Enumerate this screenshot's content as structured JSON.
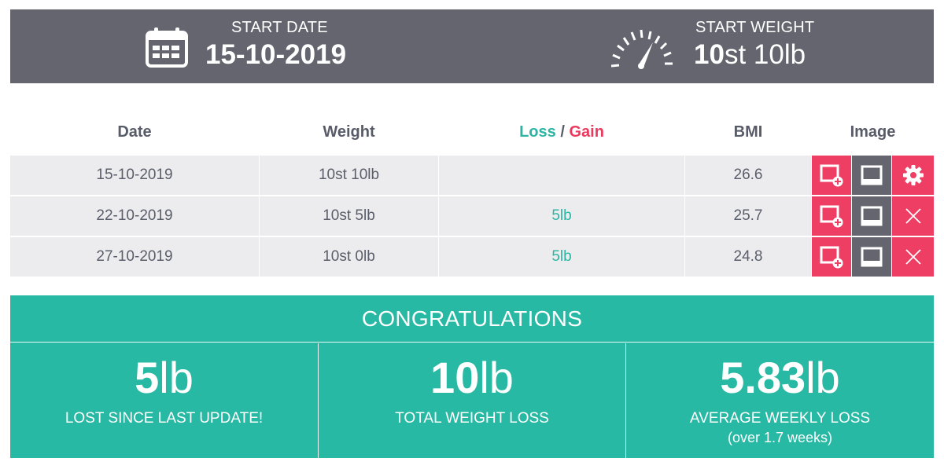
{
  "header": {
    "start_date": {
      "icon": "calendar-icon",
      "label": "START DATE",
      "value": "15-10-2019"
    },
    "start_weight": {
      "icon": "gauge-icon",
      "label": "START WEIGHT",
      "value_st": "10",
      "value_rest": "st 10lb"
    }
  },
  "table": {
    "headers": {
      "date": "Date",
      "weight": "Weight",
      "loss": "Loss",
      "separator": " / ",
      "gain": "Gain",
      "bmi": "BMI",
      "image": "Image"
    },
    "rows": [
      {
        "date": "15-10-2019",
        "weight": "10st 10lb",
        "loss": "",
        "bmi": "26.6",
        "action_icon": "gear-icon"
      },
      {
        "date": "22-10-2019",
        "weight": "10st 5lb",
        "loss": "5lb",
        "bmi": "25.7",
        "action_icon": "close-icon"
      },
      {
        "date": "27-10-2019",
        "weight": "10st 0lb",
        "loss": "5lb",
        "bmi": "24.8",
        "action_icon": "close-icon"
      }
    ]
  },
  "congrats": {
    "title": "CONGRATULATIONS",
    "stats": [
      {
        "num": "5",
        "unit": "lb",
        "label": "LOST SINCE LAST UPDATE!",
        "sub": ""
      },
      {
        "num": "10",
        "unit": "lb",
        "label": "TOTAL WEIGHT LOSS",
        "sub": ""
      },
      {
        "num": "5.83",
        "unit": "lb",
        "label": "AVERAGE WEEKLY LOSS",
        "sub": "(over 1.7 weeks)"
      }
    ]
  },
  "colors": {
    "header_bg": "#65656f",
    "accent_teal": "#27b9a4",
    "accent_red": "#ee3e64",
    "row_bg": "#ececef"
  }
}
